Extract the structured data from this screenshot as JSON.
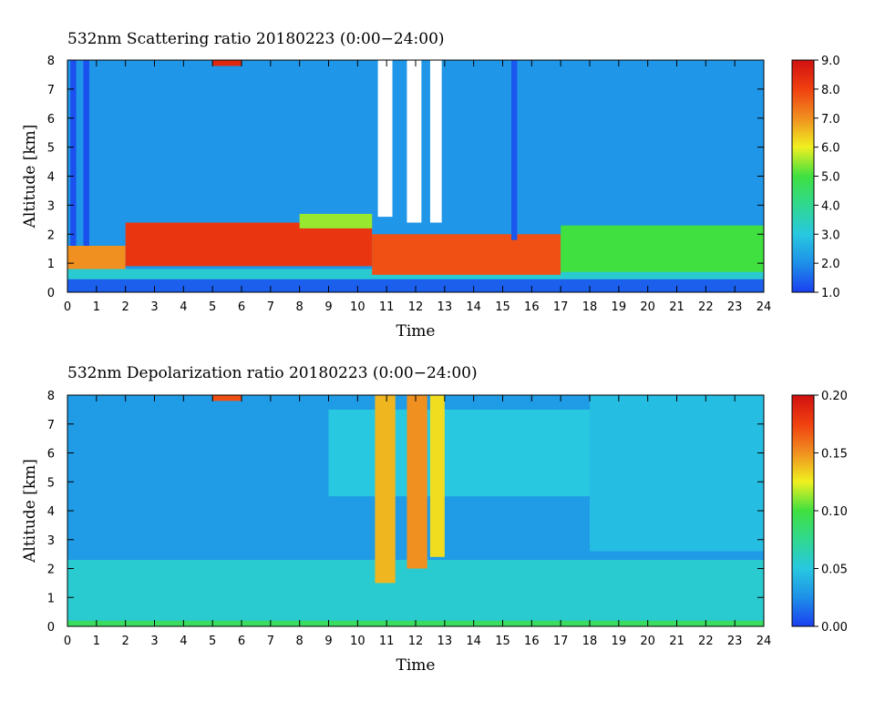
{
  "chart_data": [
    {
      "type": "heatmap",
      "title": "532nm Scattering ratio  20180223 (0:00−24:00)",
      "xlabel": "Time",
      "ylabel": "Altitude [km]",
      "xlim": [
        0,
        24
      ],
      "ylim": [
        0,
        8
      ],
      "x_ticks": [
        "0",
        "1",
        "2",
        "3",
        "4",
        "5",
        "6",
        "7",
        "8",
        "9",
        "10",
        "11",
        "12",
        "13",
        "14",
        "15",
        "16",
        "17",
        "18",
        "19",
        "20",
        "21",
        "22",
        "23",
        "24"
      ],
      "y_ticks": [
        "0",
        "1",
        "2",
        "3",
        "4",
        "5",
        "6",
        "7",
        "8"
      ],
      "colorbar": {
        "min": 1.0,
        "max": 9.0,
        "ticks": [
          "1.0",
          "2.0",
          "3.0",
          "4.0",
          "5.0",
          "6.0",
          "7.0",
          "8.0",
          "9.0"
        ],
        "colormap": [
          "#1a3ff0",
          "#1e90e8",
          "#28c8e0",
          "#30d890",
          "#40e040",
          "#f0f020",
          "#f09020",
          "#f04010",
          "#d01010"
        ]
      },
      "background_value": 2.1,
      "features": [
        {
          "kind": "layer",
          "t0": 0.0,
          "t1": 24.0,
          "z0": 0.0,
          "z1": 0.45,
          "value": 1.4
        },
        {
          "kind": "layer",
          "t0": 0.0,
          "t1": 24.0,
          "z0": 0.45,
          "z1": 0.8,
          "value": 3.2
        },
        {
          "kind": "layer",
          "t0": 0.0,
          "t1": 2.0,
          "z0": 0.8,
          "z1": 1.6,
          "value": 7.0
        },
        {
          "kind": "layer",
          "t0": 2.0,
          "t1": 10.5,
          "z0": 0.9,
          "z1": 2.4,
          "value": 8.2
        },
        {
          "kind": "layer",
          "t0": 10.5,
          "t1": 17.0,
          "z0": 0.6,
          "z1": 2.0,
          "value": 7.8
        },
        {
          "kind": "layer",
          "t0": 17.0,
          "t1": 24.0,
          "z0": 0.7,
          "z1": 2.3,
          "value": 5.0
        },
        {
          "kind": "layer",
          "t0": 8.0,
          "t1": 10.5,
          "z0": 2.2,
          "z1": 2.7,
          "value": 5.5
        },
        {
          "kind": "layer",
          "t0": 5.0,
          "t1": 6.0,
          "z0": 7.8,
          "z1": 8.0,
          "value": 8.5
        },
        {
          "kind": "column",
          "t0": 0.1,
          "t1": 0.3,
          "z0": 1.6,
          "z1": 8.0,
          "value": 1.2
        },
        {
          "kind": "column",
          "t0": 0.55,
          "t1": 0.75,
          "z0": 1.6,
          "z1": 8.0,
          "value": 1.2
        },
        {
          "kind": "column",
          "t0": 15.3,
          "t1": 15.5,
          "z0": 1.8,
          "z1": 8.0,
          "value": 1.3
        },
        {
          "kind": "gap",
          "t0": 10.7,
          "t1": 11.2,
          "z0": 2.6,
          "z1": 8.0,
          "value": null
        },
        {
          "kind": "gap",
          "t0": 11.7,
          "t1": 12.2,
          "z0": 2.4,
          "z1": 8.0,
          "value": null
        },
        {
          "kind": "gap",
          "t0": 12.5,
          "t1": 12.9,
          "z0": 2.4,
          "z1": 8.0,
          "value": null
        }
      ]
    },
    {
      "type": "heatmap",
      "title": "532nm Depolarization ratio  20180223 (0:00−24:00)",
      "xlabel": "Time",
      "ylabel": "Altitude [km]",
      "xlim": [
        0,
        24
      ],
      "ylim": [
        0,
        8
      ],
      "x_ticks": [
        "0",
        "1",
        "2",
        "3",
        "4",
        "5",
        "6",
        "7",
        "8",
        "9",
        "10",
        "11",
        "12",
        "13",
        "14",
        "15",
        "16",
        "17",
        "18",
        "19",
        "20",
        "21",
        "22",
        "23",
        "24"
      ],
      "y_ticks": [
        "0",
        "1",
        "2",
        "3",
        "4",
        "5",
        "6",
        "7",
        "8"
      ],
      "colorbar": {
        "min": 0.0,
        "max": 0.2,
        "ticks": [
          "0.00",
          "0.05",
          "0.10",
          "0.15",
          "0.20"
        ],
        "colormap": [
          "#1a3ff0",
          "#1e90e8",
          "#28c8e0",
          "#30d890",
          "#40e040",
          "#f0f020",
          "#f09020",
          "#f04010",
          "#d01010"
        ]
      },
      "background_value": 0.03,
      "features": [
        {
          "kind": "layer",
          "t0": 0.0,
          "t1": 24.0,
          "z0": 0.0,
          "z1": 0.2,
          "value": 0.09
        },
        {
          "kind": "layer",
          "t0": 0.0,
          "t1": 24.0,
          "z0": 0.2,
          "z1": 2.3,
          "value": 0.055
        },
        {
          "kind": "layer",
          "t0": 9.0,
          "t1": 18.0,
          "z0": 4.5,
          "z1": 7.5,
          "value": 0.05
        },
        {
          "kind": "layer",
          "t0": 18.0,
          "t1": 24.0,
          "z0": 2.6,
          "z1": 8.0,
          "value": 0.045
        },
        {
          "kind": "layer",
          "t0": 5.0,
          "t1": 6.0,
          "z0": 7.8,
          "z1": 8.0,
          "value": 0.17
        },
        {
          "kind": "column",
          "t0": 10.6,
          "t1": 11.3,
          "z0": 1.5,
          "z1": 8.0,
          "value": 0.14
        },
        {
          "kind": "column",
          "t0": 11.7,
          "t1": 12.4,
          "z0": 2.0,
          "z1": 8.0,
          "value": 0.15
        },
        {
          "kind": "column",
          "t0": 12.5,
          "t1": 13.0,
          "z0": 2.4,
          "z1": 8.0,
          "value": 0.13
        }
      ]
    }
  ]
}
